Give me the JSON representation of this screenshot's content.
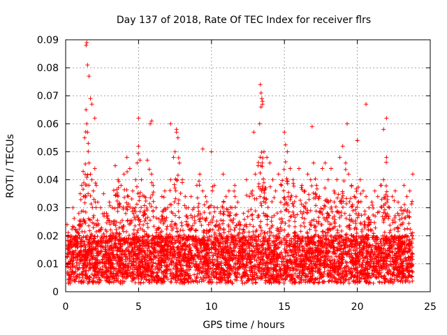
{
  "chart_data": {
    "type": "scatter",
    "title": "Day 137 of 2018, Rate Of TEC Index for receiver flrs",
    "xlabel": "GPS time / hours",
    "ylabel": "ROTI / TECUs",
    "xlim": [
      0,
      25
    ],
    "ylim": [
      0,
      0.09
    ],
    "xticks": [
      0,
      5,
      10,
      15,
      20,
      25
    ],
    "xtick_labels": [
      "0",
      "5",
      "10",
      "15",
      "20",
      "25"
    ],
    "yticks": [
      0,
      0.01,
      0.02,
      0.03,
      0.04,
      0.05,
      0.06,
      0.07,
      0.08,
      0.09
    ],
    "ytick_labels": [
      "0",
      "0.01",
      "0.02",
      "0.03",
      "0.04",
      "0.05",
      "0.06",
      "0.07",
      "0.08",
      "0.09"
    ],
    "grid": true,
    "marker": "+",
    "color": "#ff0000",
    "data_range_x": [
      0.1,
      23.8
    ],
    "series": [
      {
        "name": "ROTI",
        "x": [
          0.1,
          0.3,
          0.5,
          0.7,
          0.9,
          1.0,
          1.1,
          1.2,
          1.3,
          1.4,
          1.45,
          1.5,
          1.55,
          1.6,
          1.7,
          1.8,
          1.9,
          2.0,
          2.1,
          2.2,
          2.4,
          2.6,
          2.8,
          3.0,
          3.2,
          3.4,
          3.6,
          3.8,
          4.0,
          4.2,
          4.4,
          4.6,
          4.8,
          4.9,
          5.0,
          5.1,
          5.2,
          5.4,
          5.6,
          5.8,
          6.0,
          6.2,
          6.4,
          6.6,
          6.8,
          7.0,
          7.2,
          7.4,
          7.5,
          7.6,
          7.7,
          7.8,
          8.0,
          8.2,
          8.4,
          8.6,
          8.8,
          9.0,
          9.2,
          9.4,
          9.6,
          9.8,
          10.0,
          10.2,
          10.4,
          10.6,
          10.8,
          11.0,
          11.2,
          11.4,
          11.6,
          11.8,
          12.0,
          12.2,
          12.4,
          12.6,
          12.8,
          13.0,
          13.2,
          13.3,
          13.4,
          13.5,
          13.6,
          13.8,
          14.0,
          14.2,
          14.4,
          14.6,
          14.8,
          15.0,
          15.2,
          15.4,
          15.6,
          15.8,
          16.0,
          16.2,
          16.4,
          16.6,
          16.8,
          17.0,
          17.2,
          17.4,
          17.6,
          17.8,
          18.0,
          18.2,
          18.4,
          18.6,
          18.8,
          19.0,
          19.2,
          19.4,
          19.6,
          19.8,
          20.0,
          20.2,
          20.4,
          20.6,
          20.8,
          21.0,
          21.2,
          21.4,
          21.6,
          21.8,
          22.0,
          22.2,
          22.4,
          22.6,
          22.8,
          23.0,
          23.2,
          23.4,
          23.6,
          23.8,
          1.4,
          1.45,
          1.5,
          1.6,
          1.7,
          1.8,
          2.0,
          13.35,
          13.4,
          13.45,
          13.5,
          5.0,
          5.9,
          7.2,
          7.6,
          9.4,
          12.9,
          16.9,
          19.3,
          20.0,
          20.6,
          21.8,
          22.0
        ],
        "y": [
          0.024,
          0.018,
          0.03,
          0.022,
          0.028,
          0.035,
          0.038,
          0.043,
          0.055,
          0.065,
          0.06,
          0.057,
          0.053,
          0.046,
          0.042,
          0.04,
          0.036,
          0.044,
          0.038,
          0.032,
          0.03,
          0.035,
          0.028,
          0.032,
          0.03,
          0.045,
          0.04,
          0.038,
          0.042,
          0.048,
          0.044,
          0.036,
          0.04,
          0.046,
          0.052,
          0.047,
          0.04,
          0.034,
          0.047,
          0.06,
          0.038,
          0.03,
          0.026,
          0.034,
          0.036,
          0.03,
          0.04,
          0.048,
          0.05,
          0.057,
          0.055,
          0.046,
          0.04,
          0.034,
          0.03,
          0.034,
          0.03,
          0.038,
          0.042,
          0.036,
          0.034,
          0.03,
          0.05,
          0.038,
          0.03,
          0.028,
          0.042,
          0.034,
          0.036,
          0.03,
          0.038,
          0.032,
          0.024,
          0.028,
          0.04,
          0.034,
          0.036,
          0.042,
          0.045,
          0.06,
          0.066,
          0.068,
          0.05,
          0.048,
          0.046,
          0.04,
          0.036,
          0.042,
          0.038,
          0.057,
          0.05,
          0.044,
          0.04,
          0.034,
          0.044,
          0.038,
          0.036,
          0.042,
          0.04,
          0.046,
          0.038,
          0.034,
          0.044,
          0.046,
          0.04,
          0.044,
          0.036,
          0.04,
          0.048,
          0.052,
          0.046,
          0.042,
          0.038,
          0.034,
          0.054,
          0.04,
          0.036,
          0.034,
          0.03,
          0.032,
          0.036,
          0.034,
          0.038,
          0.04,
          0.048,
          0.03,
          0.034,
          0.036,
          0.032,
          0.03,
          0.038,
          0.034,
          0.036,
          0.042,
          0.088,
          0.089,
          0.081,
          0.077,
          0.069,
          0.067,
          0.062,
          0.074,
          0.071,
          0.069,
          0.067,
          0.062,
          0.061,
          0.06,
          0.058,
          0.051,
          0.057,
          0.059,
          0.06,
          0.054,
          0.067,
          0.058,
          0.062
        ]
      }
    ]
  }
}
